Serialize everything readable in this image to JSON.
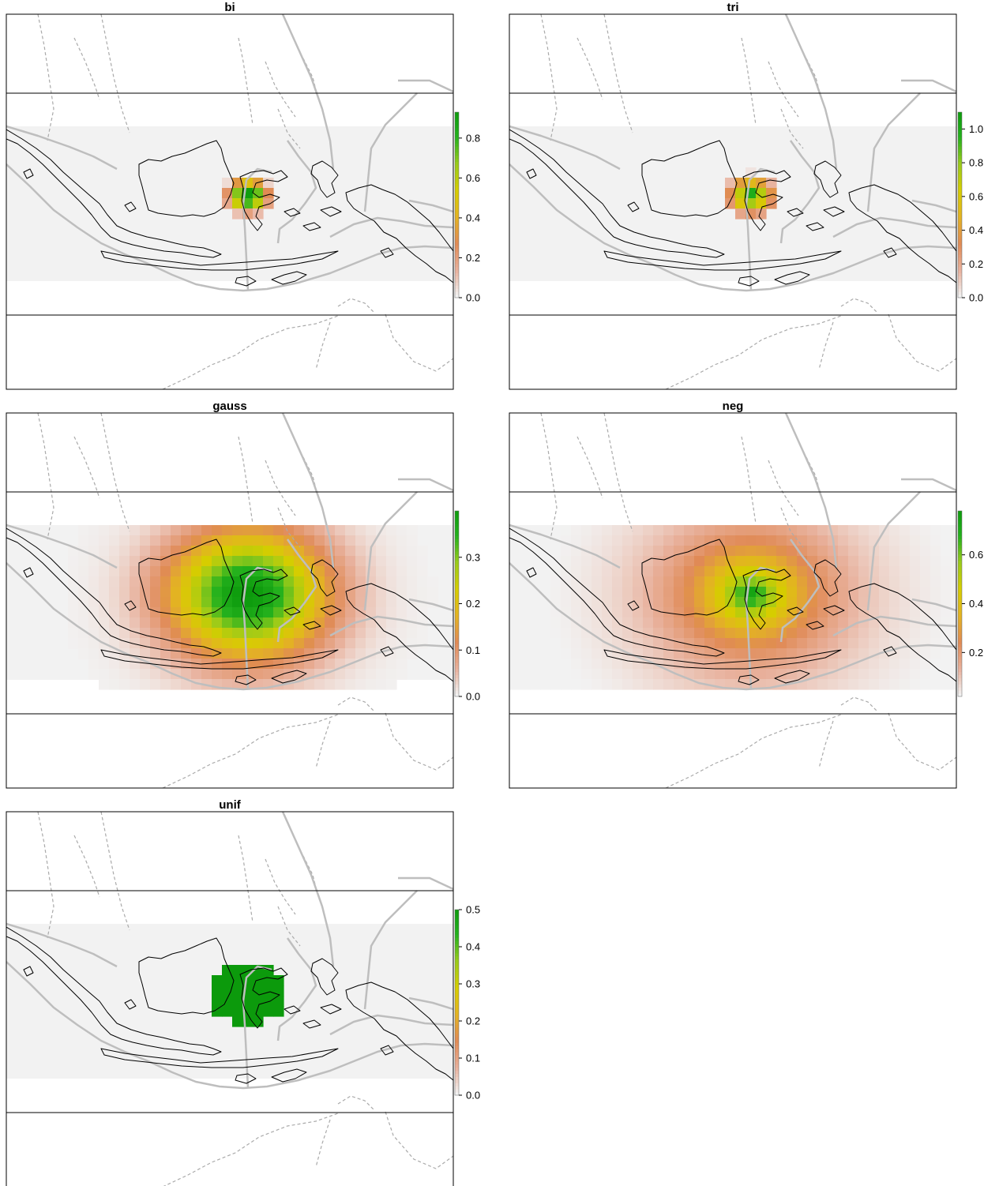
{
  "colors": {
    "panel_bg": "#f2f2f2",
    "frame": "#000000",
    "coast": "#000000",
    "boundary": "#bebebe",
    "dashed_outline": "#aaaaaa",
    "ramp": [
      "#f2f2f2",
      "#e8b09b",
      "#e08a55",
      "#e3b322",
      "#d6cd00",
      "#9acb1a",
      "#24b11d",
      "#0c9a0c"
    ]
  },
  "chart_data": [
    {
      "type": "heatmap",
      "title": "bi",
      "legend_placement": "right",
      "colorbar": {
        "min": 0,
        "max": 0.93,
        "ticks": [
          0.0,
          0.2,
          0.4,
          0.6,
          0.8
        ],
        "tick_labels": [
          "0.0",
          "0.2",
          "0.4",
          "0.6",
          "0.8"
        ]
      },
      "kernel": {
        "shape": "biweight",
        "peak": 0.93,
        "extent": "local"
      }
    },
    {
      "type": "heatmap",
      "title": "tri",
      "legend_placement": "right",
      "colorbar": {
        "min": 0,
        "max": 1.1,
        "ticks": [
          0.0,
          0.2,
          0.4,
          0.6,
          0.8,
          1.0
        ],
        "tick_labels": [
          "0.0",
          "0.2",
          "0.4",
          "0.6",
          "0.8",
          "1.0"
        ]
      },
      "kernel": {
        "shape": "triangular",
        "peak": 1.1,
        "extent": "local"
      }
    },
    {
      "type": "heatmap",
      "title": "gauss",
      "legend_placement": "right",
      "colorbar": {
        "min": 0,
        "max": 0.4,
        "ticks": [
          0.0,
          0.1,
          0.2,
          0.3
        ],
        "tick_labels": [
          "0.0",
          "0.1",
          "0.2",
          "0.3"
        ]
      },
      "kernel": {
        "shape": "gaussian",
        "peak": 0.4,
        "extent": "wide"
      }
    },
    {
      "type": "heatmap",
      "title": "neg",
      "legend_placement": "right",
      "colorbar": {
        "min": 0.02,
        "max": 0.78,
        "ticks": [
          0.2,
          0.4,
          0.6
        ],
        "tick_labels": [
          "0.2",
          "0.4",
          "0.6"
        ]
      },
      "kernel": {
        "shape": "negative-exponential",
        "peak": 0.78,
        "extent": "wide"
      }
    },
    {
      "type": "heatmap",
      "title": "unif",
      "legend_placement": "right",
      "colorbar": {
        "min": 0,
        "max": 0.5,
        "ticks": [
          0.0,
          0.1,
          0.2,
          0.3,
          0.4,
          0.5
        ],
        "tick_labels": [
          "0.0",
          "0.1",
          "0.2",
          "0.3",
          "0.4",
          "0.5"
        ]
      },
      "kernel": {
        "shape": "uniform",
        "peak": 0.5,
        "extent": "local"
      }
    }
  ]
}
